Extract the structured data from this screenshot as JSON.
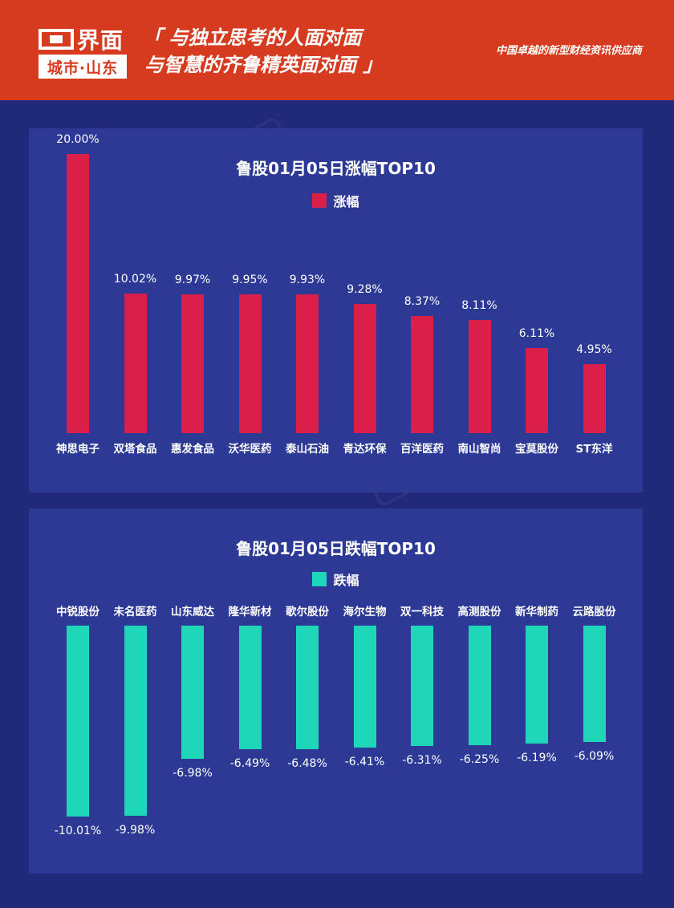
{
  "header": {
    "brand": "界面",
    "brand_sub": "城市·山东",
    "slogan_line1": "「 与独立思考的人面对面",
    "slogan_line2": "与智慧的齐鲁精英面对面 」",
    "tagline": "中国卓越的新型财经资讯供应商"
  },
  "colors": {
    "header_bg": "#d63a1f",
    "page_bg": "#212a7a",
    "panel_bg": "#2d3a95",
    "gain": "#dc1e4a",
    "loss": "#1fd6b8"
  },
  "chart_data": [
    {
      "type": "bar",
      "title": "鲁股01月05日涨幅TOP10",
      "series": [
        {
          "name": "涨幅",
          "values": [
            20.0,
            10.02,
            9.97,
            9.95,
            9.93,
            9.28,
            8.37,
            8.11,
            6.11,
            4.95
          ]
        }
      ],
      "categories": [
        "神思电子",
        "双塔食品",
        "惠发食品",
        "沃华医药",
        "泰山石油",
        "青达环保",
        "百洋医药",
        "南山智尚",
        "宝莫股份",
        "ST东洋"
      ],
      "value_labels": [
        "20.00%",
        "10.02%",
        "9.97%",
        "9.95%",
        "9.93%",
        "9.28%",
        "8.37%",
        "8.11%",
        "6.11%",
        "4.95%"
      ],
      "ylim": [
        0,
        20
      ],
      "legend": "top-center",
      "grid": false
    },
    {
      "type": "bar",
      "title": "鲁股01月05日跌幅TOP10",
      "series": [
        {
          "name": "跌幅",
          "values": [
            -10.01,
            -9.98,
            -6.98,
            -6.49,
            -6.48,
            -6.41,
            -6.31,
            -6.25,
            -6.19,
            -6.09
          ]
        }
      ],
      "categories": [
        "中锐股份",
        "未名医药",
        "山东威达",
        "隆华新材",
        "歌尔股份",
        "海尔生物",
        "双一科技",
        "高测股份",
        "新华制药",
        "云路股份"
      ],
      "value_labels": [
        "-10.01%",
        "-9.98%",
        "-6.98%",
        "-6.49%",
        "-6.48%",
        "-6.41%",
        "-6.31%",
        "-6.25%",
        "-6.19%",
        "-6.09%"
      ],
      "ylim": [
        -10.01,
        0
      ],
      "legend": "top-center",
      "grid": false
    }
  ]
}
